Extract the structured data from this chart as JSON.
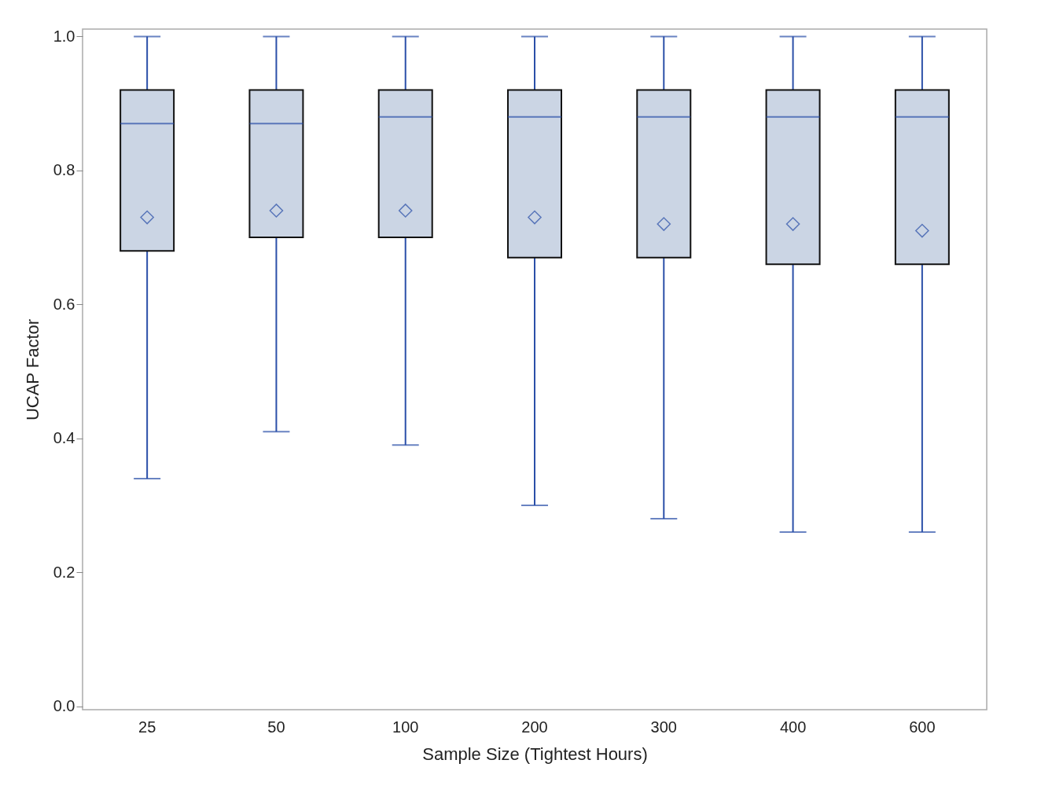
{
  "chart_data": {
    "type": "box",
    "xlabel": "Sample Size (Tightest Hours)",
    "ylabel": "UCAP Factor",
    "categories": [
      "25",
      "50",
      "100",
      "200",
      "300",
      "400",
      "600"
    ],
    "ylim": [
      -0.005,
      1.011
    ],
    "yticks": [
      {
        "value": 0,
        "label": "0.0"
      },
      0.2,
      0.4,
      0.6,
      0.8,
      {
        "value": 1,
        "label": "1.0"
      }
    ],
    "grid": false,
    "marker": "diamond",
    "series": [
      {
        "color": "#cbd5e4",
        "boxes": [
          {
            "low": 0.34,
            "q1": 0.68,
            "median": 0.87,
            "q3": 0.92,
            "high": 1.0,
            "mean": 0.73
          },
          {
            "low": 0.41,
            "q1": 0.7,
            "median": 0.87,
            "q3": 0.92,
            "high": 1.0,
            "mean": 0.74
          },
          {
            "low": 0.39,
            "q1": 0.7,
            "median": 0.88,
            "q3": 0.92,
            "high": 1.0,
            "mean": 0.74
          },
          {
            "low": 0.3,
            "q1": 0.67,
            "median": 0.88,
            "q3": 0.92,
            "high": 1.0,
            "mean": 0.73
          },
          {
            "low": 0.28,
            "q1": 0.67,
            "median": 0.88,
            "q3": 0.92,
            "high": 1.0,
            "mean": 0.72
          },
          {
            "low": 0.26,
            "q1": 0.66,
            "median": 0.88,
            "q3": 0.92,
            "high": 1.0,
            "mean": 0.72
          },
          {
            "low": 0.26,
            "q1": 0.66,
            "median": 0.88,
            "q3": 0.92,
            "high": 1.0,
            "mean": 0.71
          }
        ]
      }
    ]
  }
}
